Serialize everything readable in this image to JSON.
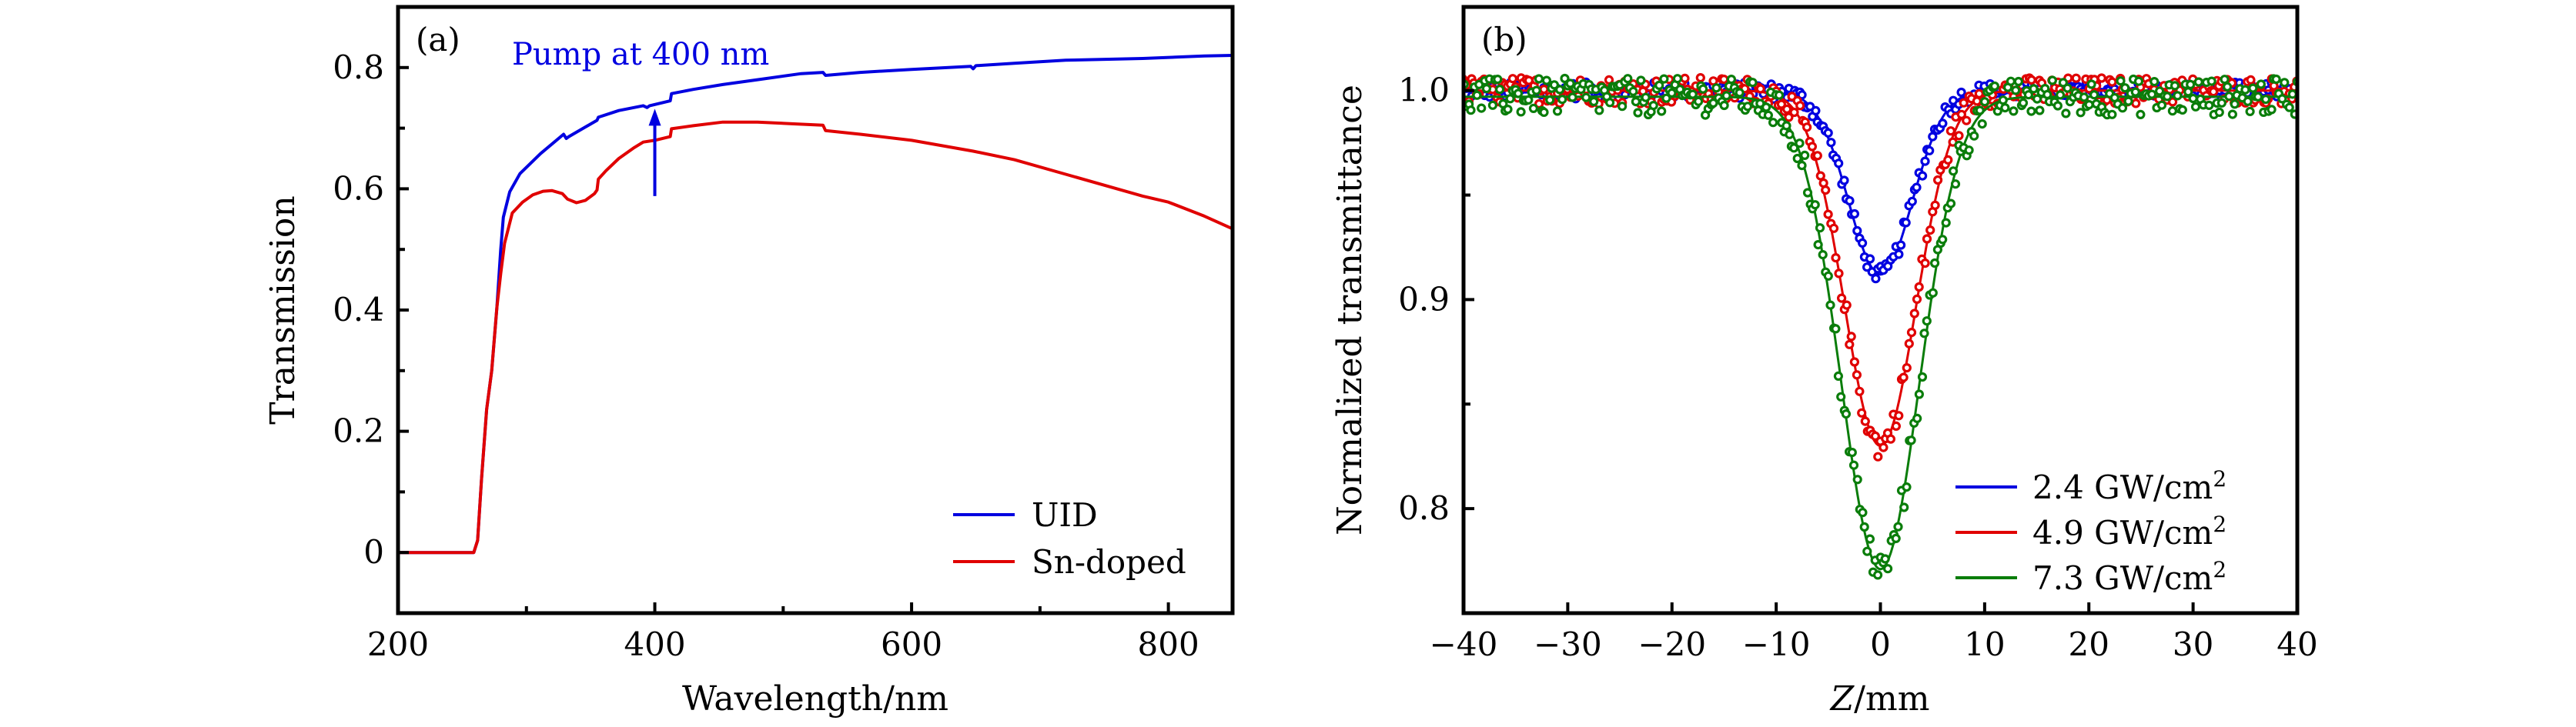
{
  "chart_data": [
    {
      "type": "line",
      "panel_label": "(a)",
      "title": "",
      "xlabel": "Wavelength/nm",
      "ylabel": "Transmission",
      "xlim": [
        200,
        850
      ],
      "ylim": [
        -0.1,
        0.9
      ],
      "xticks": [
        200,
        400,
        600,
        800
      ],
      "xtick_labels": [
        "200",
        "400",
        "600",
        "800"
      ],
      "xminor": [
        300,
        500,
        700
      ],
      "yticks": [
        0,
        0.2,
        0.4,
        0.6,
        0.8
      ],
      "ytick_labels": [
        "0",
        "0.2",
        "0.4",
        "0.6",
        "0.8"
      ],
      "yminor": [
        0.1,
        0.3,
        0.5,
        0.7
      ],
      "grid": false,
      "legend_position": "bottom-right",
      "annotation": {
        "text": "Pump at 400 nm",
        "color": "#0000e0",
        "arrow_x": 400,
        "arrow_from_y": 0.588,
        "arrow_to_y": 0.732
      },
      "series": [
        {
          "name": "UID",
          "color": "#0000e0",
          "x": [
            200,
            259,
            262,
            265,
            269,
            273,
            277,
            280,
            282,
            287,
            295,
            311,
            329,
            331,
            333,
            355,
            356,
            372,
            391,
            394,
            396,
            412,
            413,
            430,
            453,
            480,
            514,
            531,
            533,
            560,
            600,
            646,
            648,
            650,
            680,
            720,
            780,
            828,
            850
          ],
          "y": [
            0.0,
            0.0,
            0.02,
            0.12,
            0.236,
            0.3,
            0.404,
            0.5,
            0.553,
            0.595,
            0.625,
            0.658,
            0.69,
            0.683,
            0.686,
            0.713,
            0.718,
            0.729,
            0.737,
            0.734,
            0.737,
            0.745,
            0.757,
            0.764,
            0.772,
            0.78,
            0.79,
            0.792,
            0.787,
            0.792,
            0.797,
            0.802,
            0.798,
            0.803,
            0.807,
            0.812,
            0.815,
            0.819,
            0.82
          ]
        },
        {
          "name": "Sn-doped",
          "color": "#e00000",
          "x": [
            200,
            259,
            262,
            265,
            269,
            273,
            277,
            280,
            283,
            289,
            297,
            305,
            313,
            320,
            328,
            332,
            339,
            346,
            353,
            355,
            356,
            362,
            372,
            384,
            391,
            400,
            412,
            413,
            430,
            453,
            480,
            510,
            531,
            533,
            560,
            600,
            648,
            680,
            720,
            760,
            780,
            800,
            828,
            850
          ],
          "y": [
            0.0,
            0.0,
            0.02,
            0.12,
            0.236,
            0.3,
            0.404,
            0.46,
            0.51,
            0.56,
            0.578,
            0.59,
            0.596,
            0.597,
            0.592,
            0.583,
            0.577,
            0.581,
            0.592,
            0.598,
            0.616,
            0.63,
            0.65,
            0.668,
            0.677,
            0.68,
            0.686,
            0.699,
            0.704,
            0.71,
            0.71,
            0.707,
            0.705,
            0.696,
            0.69,
            0.68,
            0.662,
            0.648,
            0.624,
            0.6,
            0.588,
            0.578,
            0.555,
            0.534
          ]
        }
      ]
    },
    {
      "type": "scatter",
      "panel_label": "(b)",
      "title": "",
      "xlabel_italic": "Z",
      "xlabel_rest": "/mm",
      "ylabel": "Normalized transmittance",
      "xlim": [
        -40,
        40
      ],
      "ylim": [
        0.75,
        1.04
      ],
      "xticks": [
        -40,
        -30,
        -20,
        -10,
        0,
        10,
        20,
        30,
        40
      ],
      "xtick_labels": [
        "−40",
        "−30",
        "−20",
        "−10",
        "0",
        "10",
        "20",
        "30",
        "40"
      ],
      "yticks": [
        0.8,
        0.9,
        1.0
      ],
      "ytick_labels": [
        "0.8",
        "0.9",
        "1.0"
      ],
      "yminor": [
        0.85,
        0.95
      ],
      "grid": false,
      "legend_position": "bottom-right",
      "marker": "open-circle",
      "series": [
        {
          "name": "2.4 GW/cm²",
          "label_main": "2.4 GW/cm",
          "label_sup": "2",
          "color": "#0000e0",
          "fit": {
            "model": "gaussian-dip",
            "center": 0,
            "depth": 0.088,
            "width": 4.3,
            "baseline": 1.0
          },
          "minimum": {
            "x": 0,
            "y": 0.912
          }
        },
        {
          "name": "4.9 GW/cm²",
          "label_main": "4.9 GW/cm",
          "label_sup": "2",
          "color": "#e00000",
          "fit": {
            "model": "gaussian-dip",
            "center": 0,
            "depth": 0.17,
            "width": 4.85,
            "baseline": 1.0
          },
          "minimum": {
            "x": 0,
            "y": 0.83
          }
        },
        {
          "name": "7.3 GW/cm²",
          "label_main": "7.3 GW/cm",
          "label_sup": "2",
          "color": "#0a7d0a",
          "fit": {
            "model": "gaussian-dip",
            "center": 0,
            "depth": 0.226,
            "width": 5.3,
            "baseline": 0.997
          },
          "minimum": {
            "x": 0,
            "y": 0.774
          }
        }
      ],
      "sample_step": 0.25,
      "noise_amplitude": 0.004
    }
  ]
}
